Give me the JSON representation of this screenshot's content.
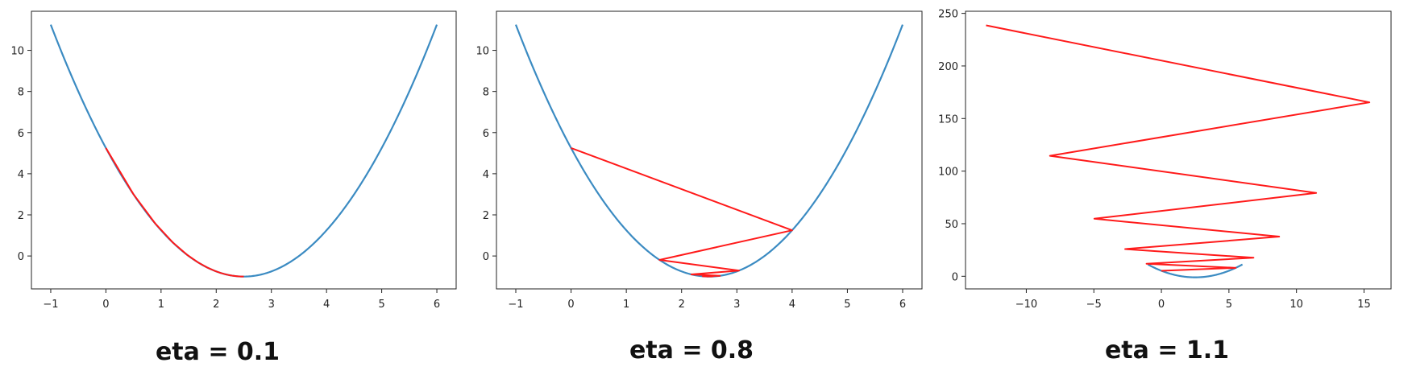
{
  "colors": {
    "curve": "#3b8bc2",
    "path": "#ff1a1a",
    "axis": "#222222"
  },
  "chart_data": [
    {
      "type": "line",
      "title": "",
      "caption": "eta = 0.1",
      "eta": 0.1,
      "function": "(x-2.5)^2 - 1",
      "curve_x_range": [
        -1,
        6
      ],
      "xlim": [
        -1.35,
        6.35
      ],
      "ylim": [
        -1.6,
        11.9
      ],
      "xticks": [
        -1,
        0,
        1,
        2,
        3,
        4,
        5,
        6
      ],
      "xtick_labels": [
        "−1",
        "0",
        "1",
        "2",
        "3",
        "4",
        "5",
        "6"
      ],
      "yticks": [
        0,
        2,
        4,
        6,
        8,
        10
      ],
      "ytick_labels": [
        "0",
        "2",
        "4",
        "6",
        "8",
        "10"
      ],
      "grid": false,
      "series": [
        {
          "role": "function-curve"
        },
        {
          "role": "descent-path",
          "start_x": 0,
          "iterations": 60
        }
      ]
    },
    {
      "type": "line",
      "title": "",
      "caption": "eta = 0.8",
      "eta": 0.8,
      "function": "(x-2.5)^2 - 1",
      "curve_x_range": [
        -1,
        6
      ],
      "xlim": [
        -1.35,
        6.35
      ],
      "ylim": [
        -1.6,
        11.9
      ],
      "xticks": [
        -1,
        0,
        1,
        2,
        3,
        4,
        5,
        6
      ],
      "xtick_labels": [
        "−1",
        "0",
        "1",
        "2",
        "3",
        "4",
        "5",
        "6"
      ],
      "yticks": [
        0,
        2,
        4,
        6,
        8,
        10
      ],
      "ytick_labels": [
        "0",
        "2",
        "4",
        "6",
        "8",
        "10"
      ],
      "grid": false,
      "series": [
        {
          "role": "function-curve"
        },
        {
          "role": "descent-path",
          "start_x": 0,
          "iterations": 30
        }
      ]
    },
    {
      "type": "line",
      "title": "",
      "caption": "eta = 1.1",
      "eta": 1.1,
      "function": "(x-2.5)^2 - 1",
      "curve_x_range": [
        -1,
        6
      ],
      "xlim": [
        -14.5,
        17
      ],
      "ylim": [
        -12,
        252
      ],
      "xticks": [
        -10,
        -5,
        0,
        5,
        10,
        15
      ],
      "xtick_labels": [
        "−10",
        "−5",
        "0",
        "5",
        "10",
        "15"
      ],
      "yticks": [
        0,
        50,
        100,
        150,
        200,
        250
      ],
      "ytick_labels": [
        "0",
        "50",
        "100",
        "150",
        "200",
        "250"
      ],
      "grid": false,
      "series": [
        {
          "role": "function-curve"
        },
        {
          "role": "descent-path",
          "start_x": 0,
          "iterations": 10
        }
      ]
    }
  ]
}
